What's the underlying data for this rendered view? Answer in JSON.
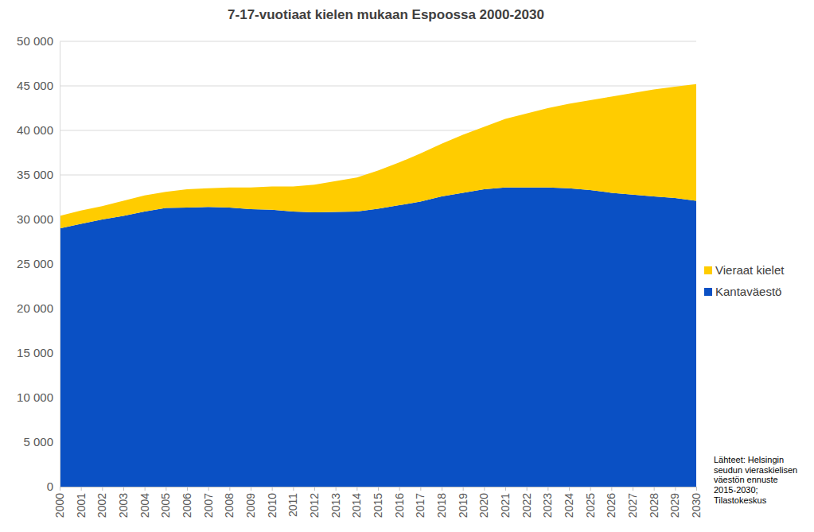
{
  "chart_data": {
    "type": "area",
    "title": "7-17-vuotiaat kielen mukaan Espoossa 2000-2030",
    "annotation": "Lähteet: Helsingin seudun vieraskielisen väestön ennuste 2015-2030; Tilastokeskus",
    "stacked": true,
    "grid": true,
    "legend": "right",
    "x": [
      2000,
      2001,
      2002,
      2003,
      2004,
      2005,
      2006,
      2007,
      2008,
      2009,
      2010,
      2011,
      2012,
      2013,
      2014,
      2015,
      2016,
      2017,
      2018,
      2019,
      2020,
      2021,
      2022,
      2023,
      2024,
      2025,
      2026,
      2027,
      2028,
      2029,
      2030
    ],
    "xlim": [
      2000,
      2030
    ],
    "xticks": [
      2000,
      2001,
      2002,
      2003,
      2004,
      2005,
      2006,
      2007,
      2008,
      2009,
      2010,
      2011,
      2012,
      2013,
      2014,
      2015,
      2016,
      2017,
      2018,
      2019,
      2020,
      2021,
      2022,
      2023,
      2024,
      2025,
      2026,
      2027,
      2028,
      2029,
      2030
    ],
    "ylim": [
      0,
      50000
    ],
    "yticks": [
      0,
      {
        "value": 5000,
        "label": "5 000"
      },
      {
        "value": 10000,
        "label": "10 000"
      },
      {
        "value": 15000,
        "label": "15 000"
      },
      {
        "value": 20000,
        "label": "20 000"
      },
      {
        "value": 25000,
        "label": "25 000"
      },
      {
        "value": 30000,
        "label": "30 000"
      },
      {
        "value": 35000,
        "label": "35 000"
      },
      {
        "value": 40000,
        "label": "40 000"
      },
      {
        "value": 45000,
        "label": "45 000"
      },
      {
        "value": 50000,
        "label": "50 000"
      }
    ],
    "series": [
      {
        "name": "Kantaväestö",
        "color": "#0a50c4",
        "values": [
          29000,
          29500,
          30000,
          30400,
          30900,
          31300,
          31350,
          31400,
          31350,
          31150,
          31100,
          30900,
          30800,
          30850,
          30900,
          31200,
          31600,
          32000,
          32600,
          33000,
          33400,
          33600,
          33600,
          33600,
          33500,
          33300,
          33000,
          32800,
          32600,
          32400,
          32100
        ]
      },
      {
        "name": "Vieraat kielet",
        "color": "#ffcc00",
        "values": [
          1400,
          1500,
          1500,
          1700,
          1800,
          1800,
          2050,
          2100,
          2250,
          2450,
          2600,
          2800,
          3100,
          3450,
          3800,
          4300,
          4800,
          5400,
          5900,
          6500,
          7000,
          7700,
          8300,
          8900,
          9500,
          10100,
          10800,
          11400,
          12000,
          12500,
          13100
        ]
      }
    ]
  }
}
